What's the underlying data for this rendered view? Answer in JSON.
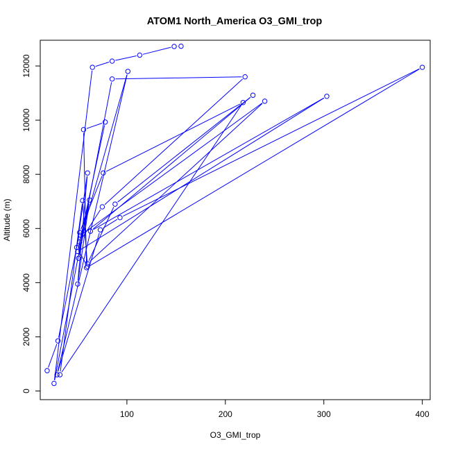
{
  "chart_data": {
    "type": "line",
    "title": "ATOM1 North_America O3_GMI_trop",
    "xlabel": "O3_GMI_trop",
    "ylabel": "Altitude (m)",
    "xlim": [
      12,
      408
    ],
    "ylim": [
      -320,
      12950
    ],
    "x_ticks": [
      100,
      200,
      300,
      400
    ],
    "x_tick_labels": [
      "100",
      "200",
      "300",
      "400"
    ],
    "y_ticks": [
      0,
      2000,
      4000,
      6000,
      8000,
      10000,
      12000
    ],
    "y_tick_labels": [
      "0",
      "2000",
      "4000",
      "6000",
      "8000",
      "10000",
      "12000"
    ],
    "grid": false,
    "legend": "none",
    "series_color": "#0000ff",
    "marker": "open-circle",
    "series": [
      {
        "points": [
          [
            19,
            750
          ],
          [
            30,
            1850
          ],
          [
            52,
            5850
          ],
          [
            76,
            8050
          ],
          [
            218,
            10650
          ],
          [
            32,
            600
          ],
          [
            55,
            7030
          ],
          [
            60,
            4600
          ],
          [
            49,
            5300
          ],
          [
            60,
            8050
          ],
          [
            50,
            3950
          ],
          [
            62,
            7050
          ],
          [
            51,
            4900
          ],
          [
            53,
            5750
          ],
          [
            240,
            10700
          ],
          [
            60,
            4700
          ],
          [
            88,
            6900
          ],
          [
            228,
            10920
          ],
          [
            63,
            5900
          ],
          [
            303,
            10880
          ],
          [
            50,
            5150
          ],
          [
            78,
            9930
          ],
          [
            56,
            9650
          ],
          [
            59,
            4550
          ],
          [
            400,
            11950
          ],
          [
            93,
            6400
          ],
          [
            73,
            5950
          ],
          [
            29,
            600
          ],
          [
            101,
            11800
          ],
          [
            52,
            5500
          ],
          [
            75,
            6800
          ],
          [
            220,
            11600
          ],
          [
            85,
            11520
          ],
          [
            26,
            280
          ],
          [
            65,
            11950
          ],
          [
            85,
            12180
          ],
          [
            113,
            12400
          ],
          [
            148,
            12720
          ],
          [
            155,
            12730
          ]
        ]
      }
    ]
  }
}
